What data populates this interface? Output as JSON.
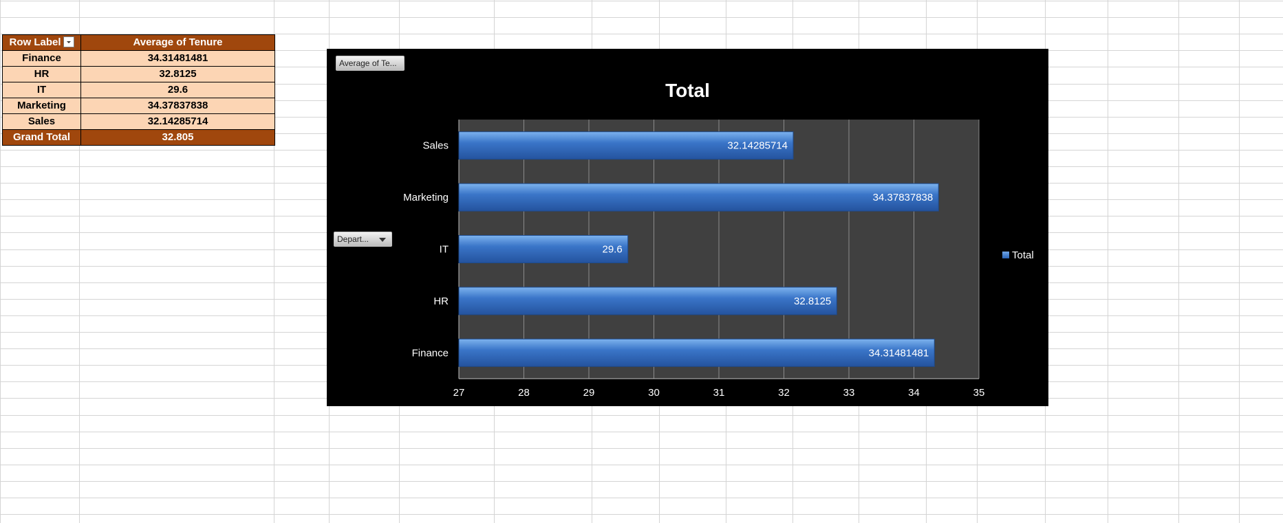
{
  "pivot": {
    "header": {
      "row_label": "Row Label",
      "value_label": "Average of Tenure"
    },
    "rows": [
      {
        "label": "Finance",
        "value": "34.31481481"
      },
      {
        "label": "HR",
        "value": "32.8125"
      },
      {
        "label": "IT",
        "value": "29.6"
      },
      {
        "label": "Marketing",
        "value": "34.37837838"
      },
      {
        "label": "Sales",
        "value": "32.14285714"
      }
    ],
    "grand_total": {
      "label": "Grand Total",
      "value": "32.805"
    }
  },
  "chart_buttons": {
    "measure": "Average of Te...",
    "axis_field": "Depart..."
  },
  "chart_data": {
    "type": "bar",
    "orientation": "horizontal",
    "title": "Total",
    "categories": [
      "Finance",
      "HR",
      "IT",
      "Marketing",
      "Sales"
    ],
    "series": [
      {
        "name": "Total",
        "values": [
          34.31481481,
          32.8125,
          29.6,
          34.37837838,
          32.14285714
        ]
      }
    ],
    "data_labels": [
      "34.31481481",
      "32.8125",
      "29.6",
      "34.37837838",
      "32.14285714"
    ],
    "xlim": [
      27,
      35
    ],
    "x_ticks": [
      "27",
      "28",
      "29",
      "30",
      "31",
      "32",
      "33",
      "34",
      "35"
    ],
    "grid": true,
    "legend": "right",
    "colors": {
      "bar": "#3a75c8",
      "plot_bg": "#404040",
      "chart_bg": "#000000"
    }
  }
}
